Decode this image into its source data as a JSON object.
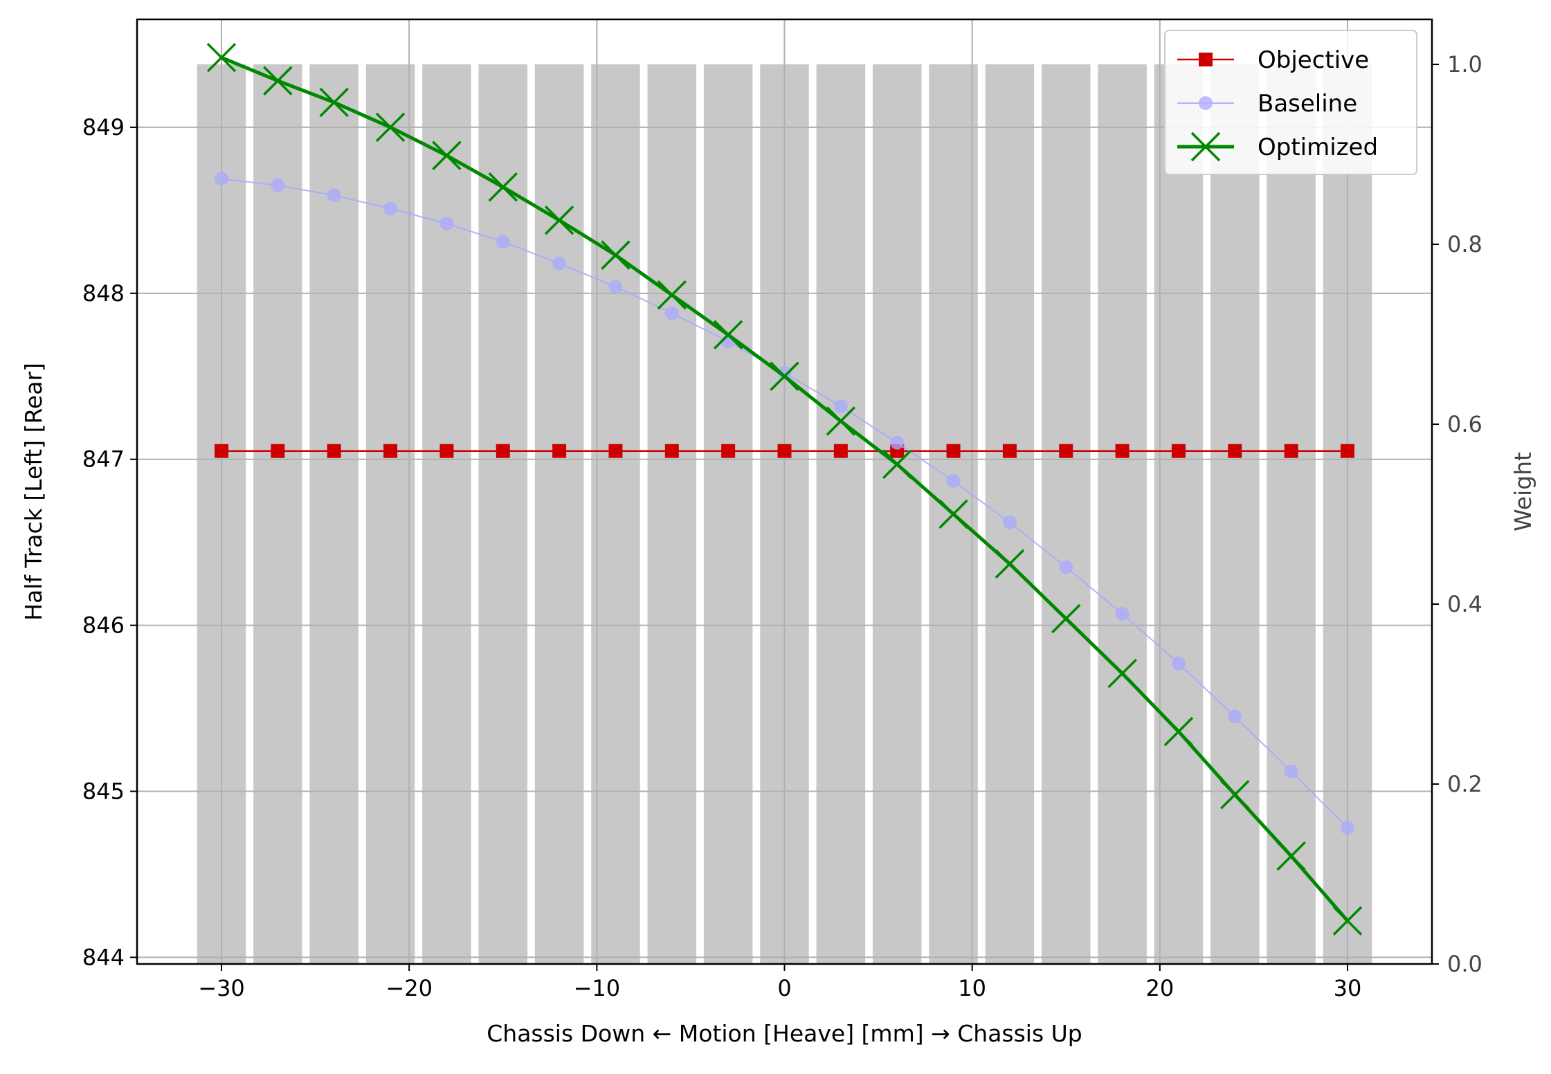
{
  "chart_data": {
    "type": "line",
    "xlabel": "Chassis Down ← Motion [Heave] [mm] → Chassis Up",
    "ylabel": "Half Track [Left] [Rear]",
    "y2label": "Weight",
    "xlim": [
      -34.5,
      34.5
    ],
    "ylim": [
      843.96,
      849.65
    ],
    "y2lim": [
      0.0,
      1.05
    ],
    "grid": true,
    "legend_position": "top-right",
    "x_ticks": [
      -30,
      -20,
      -10,
      0,
      10,
      20,
      30
    ],
    "x_tick_labels": [
      "−30",
      "−20",
      "−10",
      "0",
      "10",
      "20",
      "30"
    ],
    "y_ticks": [
      844,
      845,
      846,
      847,
      848,
      849
    ],
    "y_tick_labels": [
      "844",
      "845",
      "846",
      "847",
      "848",
      "849"
    ],
    "y2_ticks": [
      0.0,
      0.2,
      0.4,
      0.6,
      0.8,
      1.0
    ],
    "y2_tick_labels": [
      "0.0",
      "0.2",
      "0.4",
      "0.6",
      "0.8",
      "1.0"
    ],
    "x": [
      -30,
      -27,
      -24,
      -21,
      -18,
      -15,
      -12,
      -9,
      -6,
      -3,
      0,
      3,
      6,
      9,
      12,
      15,
      18,
      21,
      24,
      27,
      30
    ],
    "weight_bars": {
      "color": "#c8c8c8",
      "width": 2.6,
      "values": [
        1.0,
        1.0,
        1.0,
        1.0,
        1.0,
        1.0,
        1.0,
        1.0,
        1.0,
        1.0,
        1.0,
        1.0,
        1.0,
        1.0,
        1.0,
        1.0,
        1.0,
        1.0,
        1.0,
        1.0,
        1.0
      ]
    },
    "series": [
      {
        "name": "Objective",
        "color": "#cc0000",
        "marker": "square",
        "values": [
          847.05,
          847.05,
          847.05,
          847.05,
          847.05,
          847.05,
          847.05,
          847.05,
          847.05,
          847.05,
          847.05,
          847.05,
          847.05,
          847.05,
          847.05,
          847.05,
          847.05,
          847.05,
          847.05,
          847.05,
          847.05
        ]
      },
      {
        "name": "Baseline",
        "color": "#aaaaff",
        "marker": "circle",
        "values": [
          848.69,
          848.65,
          848.59,
          848.51,
          848.42,
          848.31,
          848.18,
          848.04,
          847.88,
          847.71,
          847.52,
          847.32,
          847.1,
          846.87,
          846.62,
          846.35,
          846.07,
          845.77,
          845.45,
          845.12,
          844.78
        ]
      },
      {
        "name": "Optimized",
        "color": "#008800",
        "marker": "x",
        "values": [
          849.42,
          849.28,
          849.15,
          849.0,
          848.83,
          848.64,
          848.44,
          848.23,
          847.99,
          847.75,
          847.5,
          847.23,
          846.97,
          846.67,
          846.37,
          846.04,
          845.71,
          845.36,
          844.98,
          844.61,
          844.22
        ]
      }
    ]
  }
}
